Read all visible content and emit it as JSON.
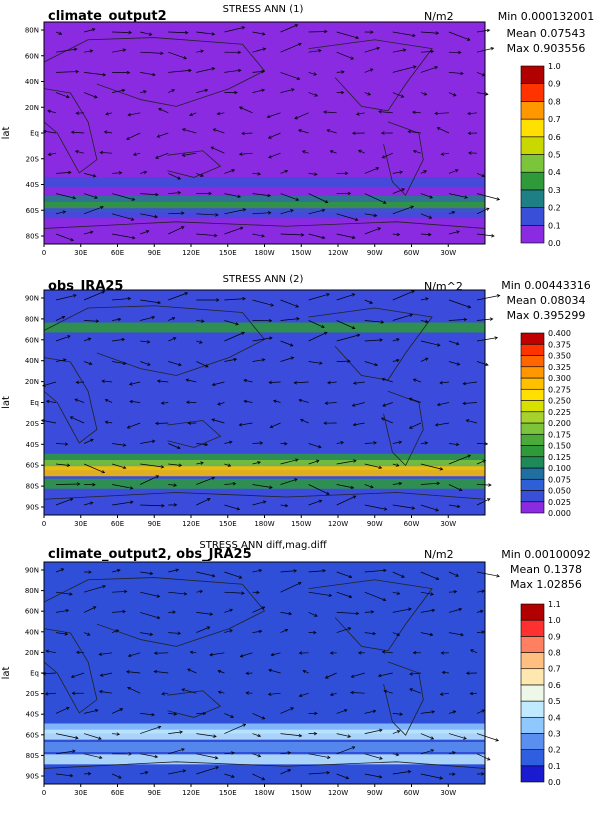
{
  "chart_data": [
    {
      "type": "heatmap",
      "case_name": "climate_output2",
      "title": "STRESS ANN (1)",
      "units": "N/m2",
      "stats": {
        "min": "Min 0.000132001",
        "mean": "Mean 0.07543",
        "max": "Max 0.903556"
      },
      "ylabel": "lat",
      "xticks": [
        "0",
        "30E",
        "60E",
        "90E",
        "120E",
        "150E",
        "180W",
        "150W",
        "120W",
        "90W",
        "60W",
        "30W"
      ],
      "yticks": [
        "80N",
        "60N",
        "40N",
        "20N",
        "Eq",
        "20S",
        "40S",
        "60S",
        "80S"
      ],
      "colorbar": {
        "levels": [
          "0.0",
          "0.1",
          "0.2",
          "0.3",
          "0.4",
          "0.5",
          "0.6",
          "0.7",
          "0.8",
          "0.9",
          "1.0"
        ],
        "colors": [
          "#8a2be2",
          "#3a4fd8",
          "#1e7f85",
          "#2e9a3a",
          "#7bc43c",
          "#c8d800",
          "#ffe000",
          "#ff9800",
          "#ff3300",
          "#b00000"
        ]
      },
      "background_color": "#8a2be2",
      "bands": [
        {
          "lat": -40,
          "color": "#3a4fd8"
        },
        {
          "lat": -55,
          "color": "#1e7f85"
        },
        {
          "lat": -60,
          "color": "#2e9a3a"
        },
        {
          "lat": -65,
          "color": "#3a4fd8"
        }
      ]
    },
    {
      "type": "heatmap",
      "case_name": "obs_JRA25",
      "title": "STRESS ANN (2)",
      "units": "N/m^2",
      "stats": {
        "min": "Min 0.00443316",
        "mean": "Mean 0.08034",
        "max": "Max 0.395299"
      },
      "ylabel": "lat",
      "xticks": [
        "0",
        "30E",
        "60E",
        "90E",
        "120E",
        "150E",
        "180W",
        "150W",
        "120W",
        "90W",
        "60W",
        "30W"
      ],
      "yticks": [
        "90N",
        "80N",
        "60N",
        "40N",
        "20N",
        "Eq",
        "20S",
        "40S",
        "60S",
        "80S",
        "90S"
      ],
      "colorbar": {
        "levels": [
          "0.000",
          "0.025",
          "0.050",
          "0.075",
          "0.100",
          "0.125",
          "0.150",
          "0.175",
          "0.200",
          "0.225",
          "0.250",
          "0.275",
          "0.300",
          "0.325",
          "0.350",
          "0.375",
          "0.400"
        ],
        "colors": [
          "#8a2be2",
          "#3a4fd8",
          "#2f5fd6",
          "#1f6fa0",
          "#1e8a5a",
          "#2e9a3a",
          "#4caa38",
          "#7bc43c",
          "#a6d22e",
          "#d8e000",
          "#ffe000",
          "#ffc000",
          "#ff9800",
          "#ff6600",
          "#ff3300",
          "#c00000"
        ]
      },
      "background_color": "#3b4bdc",
      "bands": [
        {
          "lat": 60,
          "color": "#2e9a3a"
        },
        {
          "lat": -45,
          "color": "#2e9a3a"
        },
        {
          "lat": -50,
          "color": "#7bc43c"
        },
        {
          "lat": -55,
          "color": "#ffc000"
        },
        {
          "lat": -65,
          "color": "#2e9a3a"
        }
      ]
    },
    {
      "type": "heatmap",
      "case_name": "climate_output2, obs_JRA25",
      "title": "STRESS ANN diff,mag.diff",
      "units": "N/m2",
      "stats": {
        "min": "Min 0.00100092",
        "mean": "Mean 0.1378",
        "max": "Max 1.02856"
      },
      "ylabel": "lat",
      "xticks": [
        "0",
        "30E",
        "60E",
        "90E",
        "120E",
        "150E",
        "180W",
        "150W",
        "120W",
        "90W",
        "60W",
        "30W"
      ],
      "yticks": [
        "90N",
        "80N",
        "60N",
        "40N",
        "20N",
        "Eq",
        "20S",
        "40S",
        "60S",
        "80S",
        "90S"
      ],
      "colorbar": {
        "levels": [
          "0.0",
          "0.1",
          "0.2",
          "0.3",
          "0.4",
          "0.5",
          "0.6",
          "0.7",
          "0.8",
          "0.9",
          "1.0",
          "1.1"
        ],
        "colors": [
          "#1a1ad0",
          "#2f5fe0",
          "#5a8ff0",
          "#8ec8ff",
          "#c0eaff",
          "#eef8e8",
          "#ffe8b0",
          "#ffbf80",
          "#ff8060",
          "#ff3030",
          "#b00000"
        ]
      },
      "background_color": "#2f4fd8",
      "bands": [
        {
          "lat": -45,
          "color": "#8ec8ff"
        },
        {
          "lat": -50,
          "color": "#c0eaff"
        },
        {
          "lat": -60,
          "color": "#5a8ff0"
        },
        {
          "lat": -70,
          "color": "#c0eaff"
        }
      ]
    }
  ]
}
